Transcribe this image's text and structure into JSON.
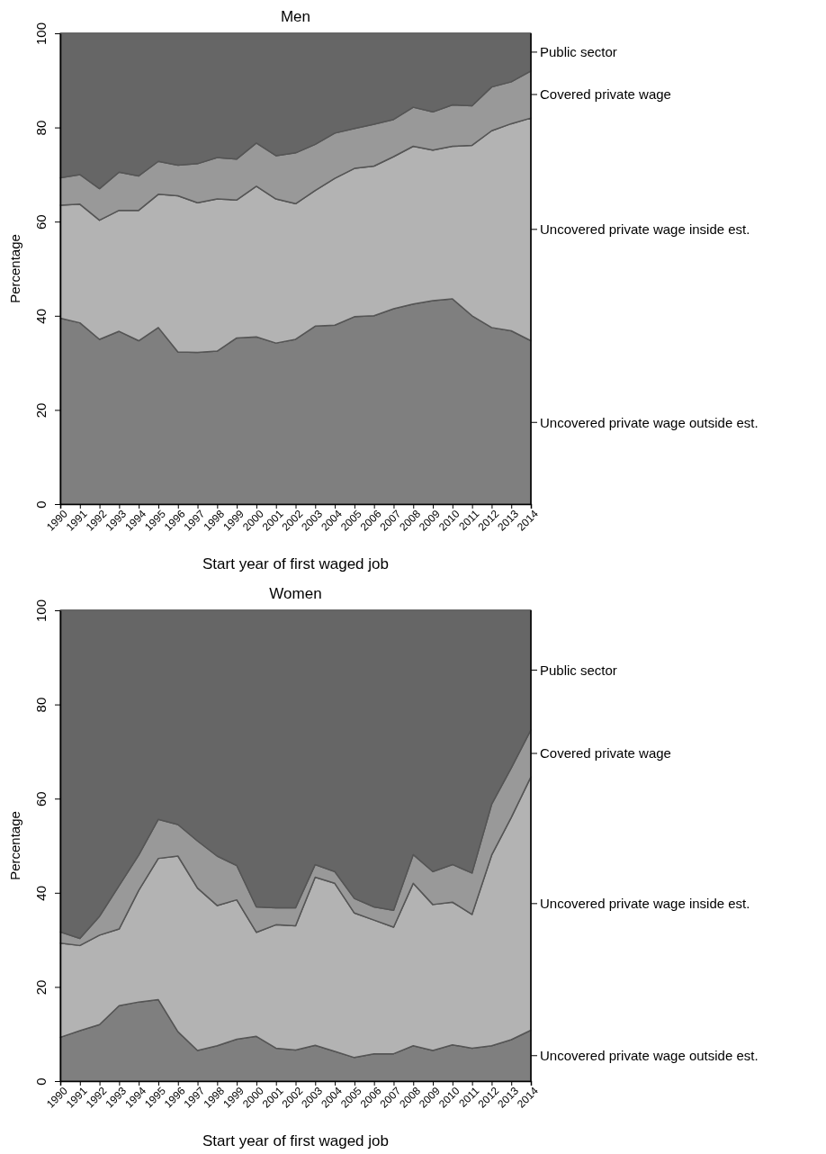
{
  "chart_data": [
    {
      "type": "area",
      "title": "Men",
      "xlabel": "Start year of first waged job",
      "ylabel": "Percentage",
      "stacked": true,
      "categories": [
        "1990",
        "1991",
        "1992",
        "1993",
        "1994",
        "1995",
        "1996",
        "1997",
        "1998",
        "1999",
        "2000",
        "2001",
        "2002",
        "2003",
        "2004",
        "2005",
        "2006",
        "2007",
        "2008",
        "2009",
        "2010",
        "2011",
        "2012",
        "2013",
        "2014"
      ],
      "ylim": [
        0,
        100
      ],
      "yticks": [
        0,
        20,
        40,
        60,
        80,
        100
      ],
      "series": [
        {
          "name": "Uncovered private wage outside est.",
          "color": "#7f7f7f",
          "values": [
            39.5,
            38.5,
            35,
            36.7,
            34.7,
            37.5,
            32.3,
            32.2,
            32.5,
            35.3,
            35.5,
            34.2,
            35,
            37.8,
            38,
            39.8,
            40,
            41.5,
            42.5,
            43.2,
            43.6,
            40,
            37.5,
            36.8,
            34.7
          ]
        },
        {
          "name": "Uncovered private wage inside est.",
          "color": "#b3b3b3",
          "values": [
            24,
            25.2,
            25.3,
            25.7,
            27.7,
            28.3,
            33.2,
            31.8,
            32.3,
            29.3,
            32,
            30.6,
            28.8,
            28.8,
            31.2,
            31.5,
            31.8,
            32.3,
            33.5,
            32,
            32.4,
            36.2,
            41.8,
            44,
            47.3
          ]
        },
        {
          "name": "Covered private wage",
          "color": "#999999",
          "values": [
            5.8,
            6.3,
            6.7,
            8.1,
            7.3,
            7,
            6.5,
            8.3,
            8.8,
            8.7,
            9.2,
            9.2,
            10.8,
            9.8,
            9.6,
            8.5,
            8.9,
            7.9,
            8.3,
            8.1,
            8.8,
            8.4,
            9.3,
            8.9,
            10
          ]
        },
        {
          "name": "Public sector",
          "color": "#666666",
          "values": [
            30.7,
            30,
            33,
            29.5,
            30.3,
            27.2,
            28,
            27.7,
            26.4,
            26.7,
            23.3,
            26,
            25.4,
            23.6,
            21.2,
            20.2,
            19.3,
            18.3,
            15.7,
            16.7,
            15.2,
            15.4,
            11.4,
            10.3,
            8
          ]
        }
      ]
    },
    {
      "type": "area",
      "title": "Women",
      "xlabel": "Start year of first waged job",
      "ylabel": "Percentage",
      "stacked": true,
      "categories": [
        "1990",
        "1991",
        "1992",
        "1993",
        "1994",
        "1995",
        "1996",
        "1997",
        "1998",
        "1999",
        "2000",
        "2001",
        "2002",
        "2003",
        "2004",
        "2005",
        "2006",
        "2007",
        "2008",
        "2009",
        "2010",
        "2011",
        "2012",
        "2013",
        "2014"
      ],
      "ylim": [
        0,
        100
      ],
      "yticks": [
        0,
        20,
        40,
        60,
        80,
        100
      ],
      "series": [
        {
          "name": "Uncovered private wage outside est.",
          "color": "#7f7f7f",
          "values": [
            9.3,
            10.7,
            12,
            16,
            16.8,
            17.3,
            10.5,
            6.5,
            7.5,
            8.9,
            9.5,
            7,
            6.6,
            7.6,
            6.3,
            5,
            5.8,
            5.8,
            7.5,
            6.5,
            7.7,
            7,
            7.5,
            8.8,
            10.8
          ]
        },
        {
          "name": "Uncovered private wage inside est.",
          "color": "#b3b3b3",
          "values": [
            20,
            18.1,
            19,
            16.3,
            23.7,
            30,
            37.3,
            34.5,
            29.8,
            29.6,
            22.1,
            26.2,
            26.4,
            35.7,
            35.7,
            30.7,
            28.4,
            26.9,
            34.5,
            31,
            30.3,
            28.4,
            40.5,
            47.2,
            53.8
          ]
        },
        {
          "name": "Covered private wage",
          "color": "#999999",
          "values": [
            2.4,
            1.5,
            4,
            9.2,
            7.5,
            8.3,
            6.7,
            10,
            10.5,
            7.3,
            5.4,
            3.6,
            3.8,
            2.7,
            2.5,
            3.1,
            2.8,
            3.6,
            6.1,
            7,
            8,
            8.8,
            10.8,
            10.5,
            10
          ]
        },
        {
          "name": "Public sector",
          "color": "#666666",
          "values": [
            68.3,
            69.7,
            65,
            58.5,
            52,
            44.4,
            45.5,
            49,
            52.2,
            54.2,
            63,
            63.2,
            63.2,
            54,
            55.5,
            61.2,
            63,
            63.7,
            51.9,
            55.5,
            54,
            55.8,
            41.2,
            33.5,
            25.4
          ]
        }
      ]
    }
  ]
}
